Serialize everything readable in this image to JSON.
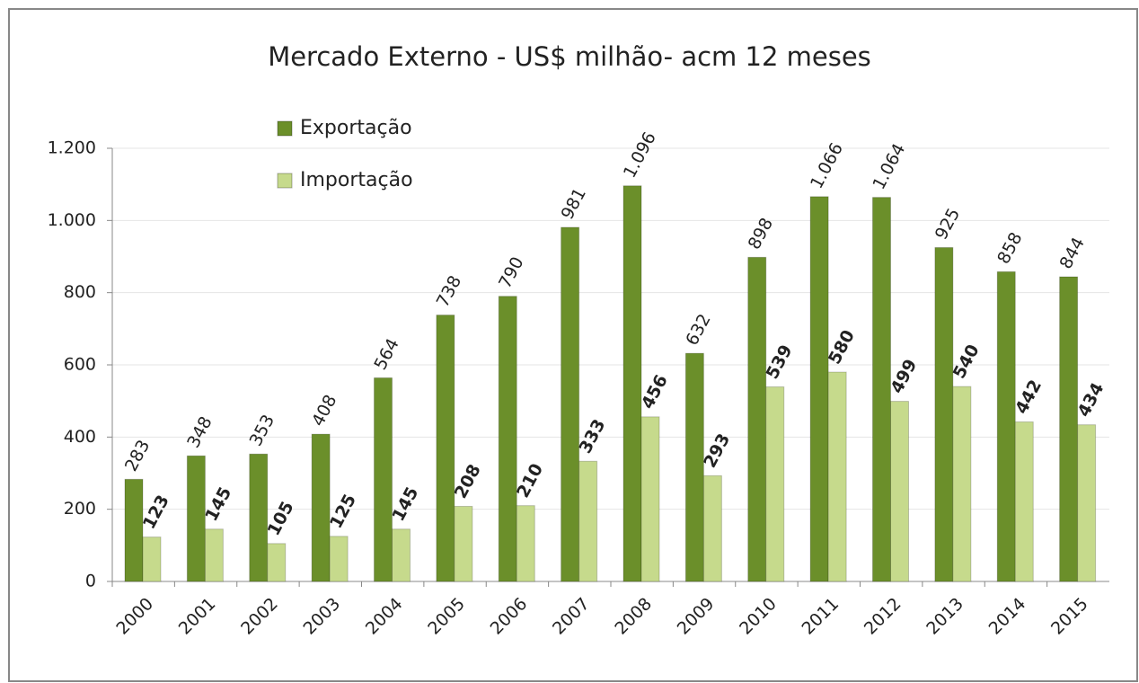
{
  "chart_data": {
    "type": "bar",
    "title": "Mercado Externo - US$ milhão- acm 12 meses",
    "categories": [
      "2000",
      "2001",
      "2002",
      "2003",
      "2004",
      "2005",
      "2006",
      "2007",
      "2008",
      "2009",
      "2010",
      "2011",
      "2012",
      "2013",
      "2014",
      "2015"
    ],
    "series": [
      {
        "name": "Exportação",
        "color": "#6b8f2a",
        "values": [
          283,
          348,
          353,
          408,
          564,
          738,
          790,
          981,
          1096,
          632,
          898,
          1066,
          1064,
          925,
          858,
          844
        ],
        "value_labels": [
          "283",
          "348",
          "353",
          "408",
          "564",
          "738",
          "790",
          "981",
          "1.096",
          "632",
          "898",
          "1.066",
          "1.064",
          "925",
          "858",
          "844"
        ]
      },
      {
        "name": "Importação",
        "color": "#c6da8c",
        "values": [
          123,
          145,
          105,
          125,
          145,
          208,
          210,
          333,
          456,
          293,
          539,
          580,
          499,
          540,
          442,
          434
        ]
      }
    ],
    "ylim": [
      0,
      1200
    ],
    "yticks": [
      0,
      200,
      400,
      600,
      800,
      {
        "value": 1000,
        "label": "1.000"
      },
      {
        "value": 1200,
        "label": "1.200"
      }
    ],
    "grid": true
  }
}
